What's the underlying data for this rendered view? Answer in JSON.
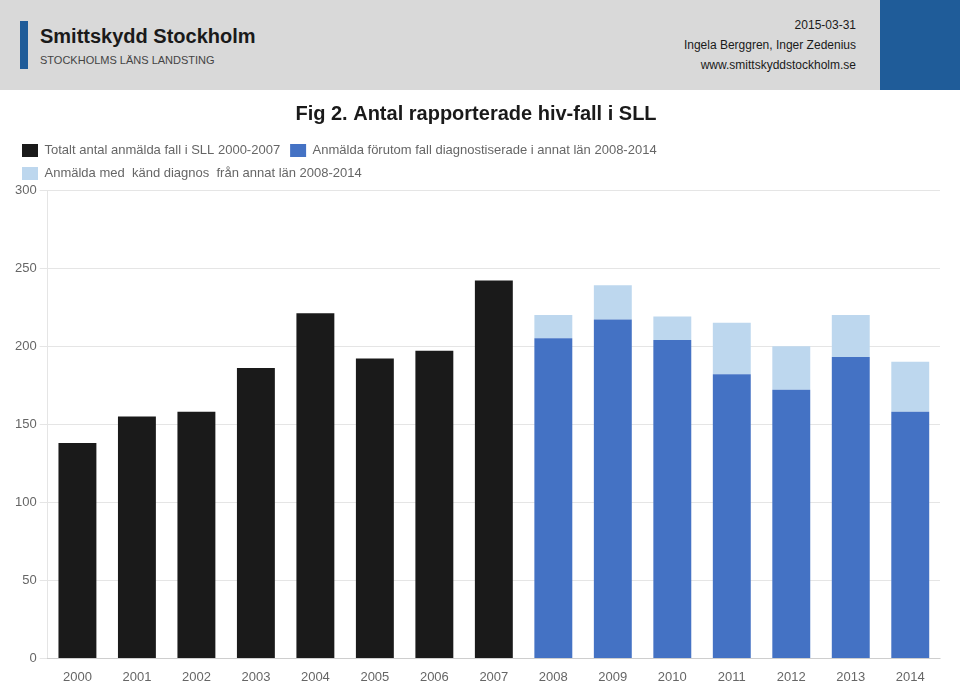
{
  "chart_data": {
    "type": "bar",
    "title": "Fig 2. Antal rapporterade hiv-fall i SLL",
    "annotations": [
      "Smittskydd Stockholm",
      "STOCKHOLMS LÄNS LANDSTING",
      "2015-03-31",
      "Ingela Berggren, Inger Zedenius",
      "www.smittskyddstockholm.se"
    ],
    "categories": [
      "2000",
      "2001",
      "2002",
      "2003",
      "2004",
      "2005",
      "2006",
      "2007",
      "2008",
      "2009",
      "2010",
      "2011",
      "2012",
      "2013",
      "2014"
    ],
    "series": [
      {
        "name": "Totalt antal anmälda fall i SLL 2000-2007",
        "color": "#1a1a1a",
        "values": [
          138,
          155,
          158,
          186,
          221,
          192,
          197,
          242,
          0,
          0,
          0,
          0,
          0,
          0,
          0
        ]
      },
      {
        "name": "Anmälda förutom fall diagnostiserade i annat län 2008-2014",
        "color": "#4472C4",
        "values": [
          0,
          0,
          0,
          0,
          0,
          0,
          0,
          0,
          205,
          217,
          204,
          182,
          172,
          193,
          158
        ]
      },
      {
        "name": "Anmälda med  känd diagnos  från annat län 2008-2014",
        "color": "#BDD7EE",
        "values": [
          0,
          0,
          0,
          0,
          0,
          0,
          0,
          0,
          15,
          22,
          15,
          33,
          28,
          27,
          32
        ]
      }
    ],
    "stacked": true,
    "ylim": [
      0,
      300
    ],
    "yticks": [
      0,
      50,
      100,
      150,
      200,
      250,
      300
    ],
    "grid": true,
    "legend": "upper left"
  }
}
